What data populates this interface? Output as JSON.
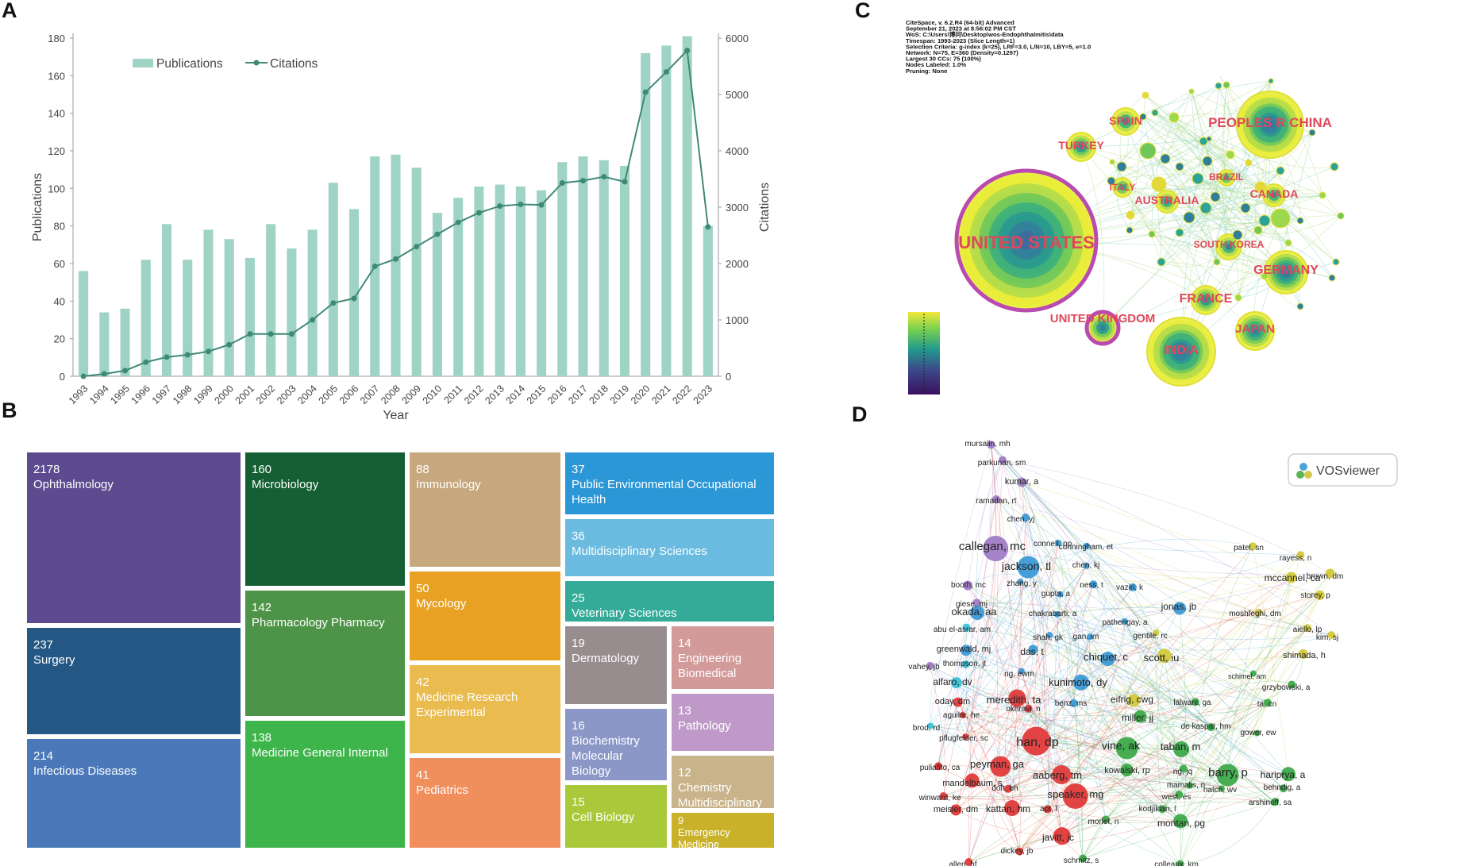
{
  "panels": {
    "a": "A",
    "b": "B",
    "c": "C",
    "d": "D"
  },
  "chart_data": [
    {
      "type": "bar+line",
      "panel": "A",
      "categories": [
        "1993",
        "1994",
        "1995",
        "1996",
        "1997",
        "1998",
        "1999",
        "2000",
        "2001",
        "2002",
        "2003",
        "2004",
        "2005",
        "2006",
        "2007",
        "2008",
        "2009",
        "2010",
        "2011",
        "2012",
        "2013",
        "2014",
        "2015",
        "2016",
        "2017",
        "2018",
        "2019",
        "2020",
        "2021",
        "2022",
        "2023"
      ],
      "series": [
        {
          "name": "Publications",
          "kind": "bar",
          "axis": "left",
          "color": "#9fd3c6",
          "values": [
            56,
            34,
            36,
            62,
            81,
            62,
            78,
            73,
            63,
            81,
            68,
            78,
            103,
            89,
            117,
            118,
            111,
            87,
            95,
            101,
            102,
            101,
            99,
            114,
            117,
            115,
            112,
            172,
            176,
            181,
            80
          ]
        },
        {
          "name": "Citations",
          "kind": "line",
          "axis": "right",
          "color": "#3f8a74",
          "values": [
            0,
            40,
            100,
            250,
            340,
            380,
            440,
            560,
            750,
            750,
            750,
            1000,
            1300,
            1380,
            1950,
            2080,
            2300,
            2520,
            2730,
            2900,
            3020,
            3050,
            3040,
            3430,
            3470,
            3540,
            3450,
            5040,
            5400,
            5780,
            2650
          ]
        }
      ],
      "xlabel": "Year",
      "ylabel": "Publications",
      "y2label": "Citations",
      "ylim": [
        0,
        180
      ],
      "y2lim": [
        0,
        6000
      ],
      "yticks": [
        "0",
        "20",
        "40",
        "60",
        "80",
        "100",
        "120",
        "140",
        "160",
        "180"
      ],
      "y2ticks": [
        "0",
        "1000",
        "2000",
        "3000",
        "4000",
        "5000",
        "6000"
      ],
      "legend": [
        "Publications",
        "Citations"
      ]
    },
    {
      "type": "treemap",
      "panel": "B",
      "items": [
        {
          "value": "2178",
          "label": "Ophthalmology",
          "color": "#5c4b8e"
        },
        {
          "value": "237",
          "label": "Surgery",
          "color": "#245784"
        },
        {
          "value": "214",
          "label": "Infectious Diseases",
          "color": "#4a78b8"
        },
        {
          "value": "160",
          "label": "Microbiology",
          "color": "#145f33"
        },
        {
          "value": "142",
          "label": "Pharmacology Pharmacy",
          "color": "#4e9448"
        },
        {
          "value": "138",
          "label": "Medicine General Internal",
          "color": "#3db54a"
        },
        {
          "value": "88",
          "label": "Immunology",
          "color": "#c6a77e"
        },
        {
          "value": "50",
          "label": "Mycology",
          "color": "#e8a123"
        },
        {
          "value": "42",
          "label": "Medicine Research Experimental",
          "color": "#eabb4e"
        },
        {
          "value": "41",
          "label": "Pediatrics",
          "color": "#f08e5c"
        },
        {
          "value": "37",
          "label": "Public Environmental Occupational Health",
          "color": "#2b97d6"
        },
        {
          "value": "36",
          "label": "Multidisciplinary Sciences",
          "color": "#6bbbe0"
        },
        {
          "value": "25",
          "label": "Veterinary Sciences",
          "color": "#34aa98"
        },
        {
          "value": "19",
          "label": "Dermatology",
          "color": "#978c8e"
        },
        {
          "value": "14",
          "label": "Engineering Biomedical",
          "color": "#d39a9a"
        },
        {
          "value": "16",
          "label": "Biochemistry Molecular Biology",
          "color": "#8b97c7"
        },
        {
          "value": "13",
          "label": "Pathology",
          "color": "#bf9ac9"
        },
        {
          "value": "15",
          "label": "Cell Biology",
          "color": "#a9c93b"
        },
        {
          "value": "12",
          "label": "Chemistry Multidisciplinary",
          "color": "#c9b38a"
        },
        {
          "value": "9",
          "label": "Emergency Medicine",
          "color": "#c9b12a"
        }
      ]
    }
  ],
  "citespace": {
    "info": [
      "CiteSpace, v. 6.2.R4 (64-bit) Advanced",
      "September 21, 2023 at 8:56:02 PM CST",
      "WoS: C:\\Users\\博问\\Desktop\\wos-Endophthalmitis\\data",
      "Timespan: 1993-2023 (Slice Length=1)",
      "Selection Criteria: g-index (k=25), LRF=3.0, L/N=10, LBY=5, e=1.0",
      "Network: N=75, E=360 (Density=0.1297)",
      "Largest 30 CCs: 75 (100%)",
      "Nodes Labeled: 1.0%",
      "Pruning: None"
    ],
    "countries": [
      "UNITED STATES",
      "PEOPLES R CHINA",
      "SPAIN",
      "TURKEY",
      "ITALY",
      "AUSTRALIA",
      "BRAZIL",
      "CANADA",
      "SOUTH KOREA",
      "GERMANY",
      "FRANCE",
      "UNITED KINGDOM",
      "INDIA",
      "JAPAN"
    ]
  },
  "vosviewer": {
    "logo": "VOSviewer",
    "authors": [
      "mursalin, mh",
      "parkunan, sm",
      "kumar, a",
      "ramadan, rt",
      "chen, yj",
      "callegan, mc",
      "connell, pp",
      "cunningham, et",
      "jackson, tl",
      "chen, kj",
      "booth, mc",
      "zhang, y",
      "ness, t",
      "vaziri, k",
      "patel, sn",
      "rayess, n",
      "mccannel, ca",
      "brown, dm",
      "storey, p",
      "giese, mj",
      "gupta, a",
      "okada, aa",
      "jonas, jb",
      "chakrabarti, a",
      "moshfeghi, dm",
      "abu el-asrar, am",
      "pathengay, a",
      "aiello, lp",
      "greenwald, mj",
      "shah, gk",
      "gan, im",
      "gentile, rc",
      "kim, sj",
      "thompson, jt",
      "das, t",
      "chiquet, c",
      "scott, iu",
      "shimada, h",
      "vahey, jb",
      "alfaro, dv",
      "ng, ewm",
      "kunimoto, dy",
      "schimel, am",
      "oday, dm",
      "meredith, ta",
      "okhravi, n",
      "benz, ms",
      "eifrig, cwg",
      "lalwani, ga",
      "grzybowski, a",
      "aguilar, he",
      "miller, jj",
      "ta, cn",
      "brod, rd",
      "han, dp",
      "vine, ak",
      "de kaspar, hm",
      "pflugfelder, sc",
      "taban, m",
      "gower, ew",
      "puliafito, ca",
      "peyman, ga",
      "aaberg, tm",
      "kowalski, rp",
      "ng, jq",
      "barry, p",
      "mandelbaum, s",
      "doft, bh",
      "mamalis, n",
      "hatch, wv",
      "hariprya, a",
      "winward, ke",
      "speaker, mg",
      "west, es",
      "behndig, a",
      "kodjikian, l",
      "arshinoff, sa",
      "meisler, dm",
      "kattan, hm",
      "apt, l",
      "morlet, n",
      "montan, pg",
      "javitt, jc",
      "dickey, jb",
      "schmitz, s",
      "allen, hf",
      "colleaux, km"
    ]
  }
}
